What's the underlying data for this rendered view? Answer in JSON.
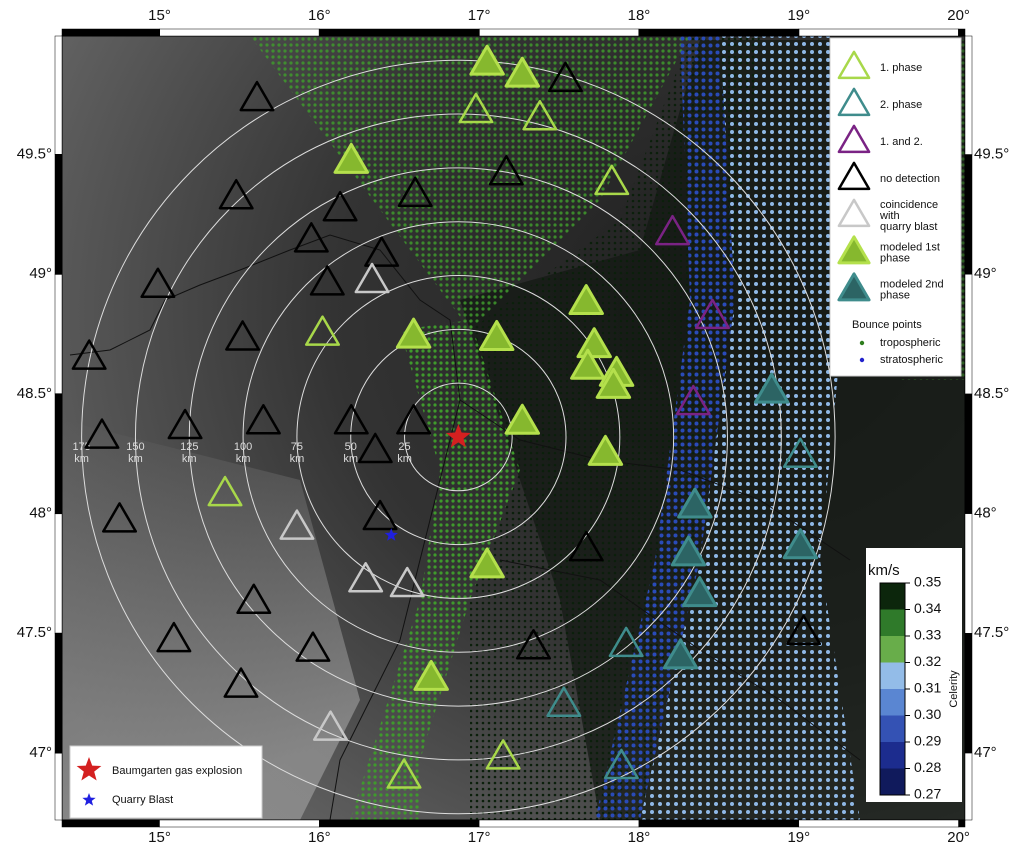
{
  "map": {
    "lonlim": [
      14.39,
      20.04
    ],
    "latlim": [
      46.72,
      49.995
    ],
    "lonticks": [
      {
        "value": 15,
        "label": "15°"
      },
      {
        "value": 16,
        "label": "16°"
      },
      {
        "value": 17,
        "label": "17°"
      },
      {
        "value": 18,
        "label": "18°"
      },
      {
        "value": 19,
        "label": "19°"
      },
      {
        "value": 20,
        "label": "20°"
      }
    ],
    "latticks": [
      {
        "value": 47,
        "label": "47°"
      },
      {
        "value": 47.5,
        "label": "47.5°"
      },
      {
        "value": 48,
        "label": "48°"
      },
      {
        "value": 48.5,
        "label": "48.5°"
      },
      {
        "value": 49,
        "label": "49°"
      },
      {
        "value": 49.5,
        "label": "49.5°"
      }
    ],
    "source": {
      "lon": 16.87,
      "lat": 48.32,
      "color": "#d42020"
    },
    "quarry": {
      "lon": 16.45,
      "lat": 47.91,
      "color": "#2020e0"
    },
    "rings": {
      "radii": [
        25,
        50,
        75,
        100,
        125,
        150,
        175
      ],
      "unit": "km"
    },
    "stations": {
      "phase1": [
        [
          16.98,
          49.68
        ],
        [
          17.38,
          49.65
        ],
        [
          17.83,
          49.38
        ],
        [
          16.02,
          48.75
        ],
        [
          15.41,
          48.08
        ],
        [
          16.53,
          46.9
        ],
        [
          17.15,
          46.98
        ]
      ],
      "phase2": [
        [
          17.92,
          47.45
        ],
        [
          17.53,
          47.2
        ],
        [
          17.89,
          46.94
        ],
        [
          19.01,
          48.24
        ]
      ],
      "both": [
        [
          18.21,
          49.17
        ],
        [
          18.46,
          48.82
        ],
        [
          18.34,
          48.46
        ]
      ],
      "none": [
        [
          15.61,
          49.73
        ],
        [
          17.54,
          49.81
        ],
        [
          17.17,
          49.42
        ],
        [
          16.6,
          49.33
        ],
        [
          15.48,
          49.32
        ],
        [
          16.13,
          49.27
        ],
        [
          15.95,
          49.14
        ],
        [
          16.39,
          49.08
        ],
        [
          14.99,
          48.95
        ],
        [
          16.05,
          48.96
        ],
        [
          14.56,
          48.65
        ],
        [
          15.52,
          48.73
        ],
        [
          14.64,
          48.32
        ],
        [
          15.16,
          48.36
        ],
        [
          15.65,
          48.38
        ],
        [
          16.2,
          48.38
        ],
        [
          16.59,
          48.38
        ],
        [
          16.35,
          48.26
        ],
        [
          14.75,
          47.97
        ],
        [
          16.38,
          47.98
        ],
        [
          17.67,
          47.85
        ],
        [
          15.59,
          47.63
        ],
        [
          15.09,
          47.47
        ],
        [
          15.96,
          47.43
        ],
        [
          17.34,
          47.44
        ],
        [
          15.51,
          47.28
        ],
        [
          19.03,
          47.5
        ]
      ],
      "quarry": [
        [
          16.33,
          48.97
        ],
        [
          15.86,
          47.94
        ],
        [
          16.29,
          47.72
        ],
        [
          16.55,
          47.7
        ],
        [
          16.07,
          47.1
        ]
      ],
      "modeled1": [
        [
          17.05,
          49.88
        ],
        [
          17.27,
          49.83
        ],
        [
          16.2,
          49.47
        ],
        [
          16.59,
          48.74
        ],
        [
          17.11,
          48.73
        ],
        [
          17.67,
          48.88
        ],
        [
          17.72,
          48.7
        ],
        [
          17.68,
          48.61
        ],
        [
          17.86,
          48.58
        ],
        [
          17.84,
          48.53
        ],
        [
          17.27,
          48.38
        ],
        [
          17.79,
          48.25
        ],
        [
          17.05,
          47.78
        ],
        [
          16.7,
          47.31
        ]
      ],
      "modeled2": [
        [
          18.83,
          48.51
        ],
        [
          18.35,
          48.03
        ],
        [
          18.31,
          47.83
        ],
        [
          18.38,
          47.66
        ],
        [
          18.26,
          47.4
        ],
        [
          19.01,
          47.86
        ]
      ]
    },
    "styles": {
      "phase1": {
        "stroke": "#a8d84a",
        "fill": "none"
      },
      "phase2": {
        "stroke": "#3f8c8c",
        "fill": "none"
      },
      "both": {
        "stroke": "#7a2384",
        "fill": "none"
      },
      "none": {
        "stroke": "#000000",
        "fill": "none"
      },
      "quarry": {
        "stroke": "#c8c8c8",
        "fill": "none"
      },
      "modeled1": {
        "stroke": "#b4e04c",
        "fill": "#86b82e"
      },
      "modeled2": {
        "stroke": "#3f8c8c",
        "fill": "#2c6464"
      }
    },
    "legend": {
      "items": [
        {
          "kind": "phase1",
          "lines": [
            "1. phase"
          ]
        },
        {
          "kind": "phase2",
          "lines": [
            "2. phase"
          ]
        },
        {
          "kind": "both",
          "lines": [
            "1. and 2."
          ]
        },
        {
          "kind": "none",
          "lines": [
            "no detection"
          ]
        },
        {
          "kind": "quarry",
          "lines": [
            "coincidence",
            "with",
            "quarry blast"
          ]
        },
        {
          "kind": "modeled1",
          "lines": [
            "modeled 1st",
            "phase"
          ]
        },
        {
          "kind": "modeled2",
          "lines": [
            "modeled 2nd",
            "phase"
          ]
        }
      ],
      "bounce_title": "Bounce points",
      "bounce": [
        {
          "label": "tropospheric",
          "color": "#2e7d1e"
        },
        {
          "label": "stratospheric",
          "color": "#2222cc"
        }
      ],
      "source_label": "Baumgarten gas explosion",
      "quarry_label": "Quarry Blast"
    },
    "colorbar": {
      "unit": "km/s",
      "title": "Celerity",
      "lim": [
        0.27,
        0.35
      ],
      "ticks": [
        0.27,
        0.28,
        0.29,
        {
          "value": 0.3,
          "label": "0.30"
        },
        0.31,
        0.32,
        0.33,
        0.34,
        0.35
      ],
      "colors": [
        "#101a5c",
        "#1c2c8e",
        "#3452b4",
        "#5a86d2",
        "#93bce8",
        "#68ad4a",
        "#2f7a2a",
        "#0c260c"
      ]
    }
  }
}
